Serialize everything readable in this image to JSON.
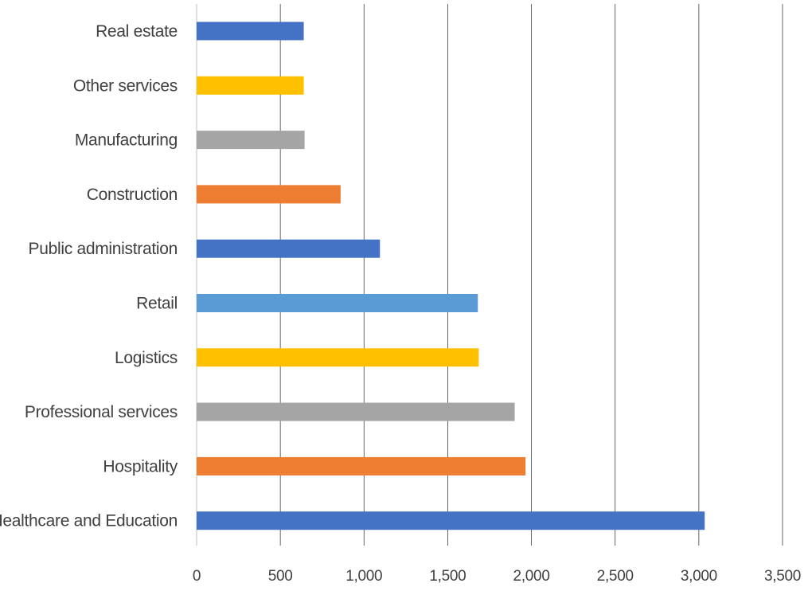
{
  "chart_data": {
    "type": "bar",
    "orientation": "horizontal",
    "categories": [
      "Real estate",
      "Other services",
      "Manufacturing",
      "Construction",
      "Public administration",
      "Retail",
      "Logistics",
      "Professional services",
      "Hospitality",
      "Healthcare and Education"
    ],
    "values": [
      640,
      640,
      645,
      860,
      1095,
      1680,
      1685,
      1900,
      1965,
      3035
    ],
    "bar_colors": [
      "#4472C4",
      "#FFC000",
      "#A5A5A5",
      "#ED7D31",
      "#4472C4",
      "#5B9BD5",
      "#FFC000",
      "#A5A5A5",
      "#ED7D31",
      "#4472C4"
    ],
    "x_ticks": [
      "0",
      "500",
      "1,000",
      "1,500",
      "2,000",
      "2,500",
      "3,000",
      "3,500"
    ],
    "xlim": [
      0,
      3500
    ],
    "grid": "vertical",
    "legend": "none",
    "title": "",
    "xlabel": "",
    "ylabel": ""
  }
}
